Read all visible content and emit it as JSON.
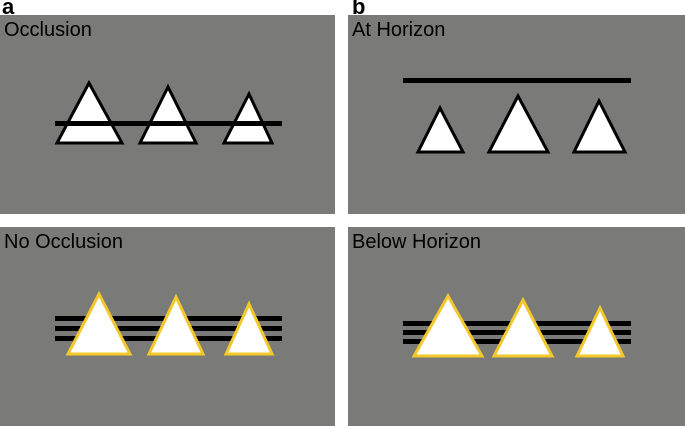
{
  "figure": {
    "labels": {
      "a": "a",
      "b": "b"
    },
    "panels": {
      "occlusion": {
        "title": "Occlusion"
      },
      "no_occlusion": {
        "title": "No Occlusion"
      },
      "at_horizon": {
        "title": "At Horizon"
      },
      "below_horizon": {
        "title": "Below Horizon"
      }
    },
    "colors": {
      "background": "#7a7a78",
      "triangle_fill": "#ffffff",
      "outline_dark": "#000000",
      "outline_highlight": "#f2c82a",
      "line": "#000000"
    }
  }
}
